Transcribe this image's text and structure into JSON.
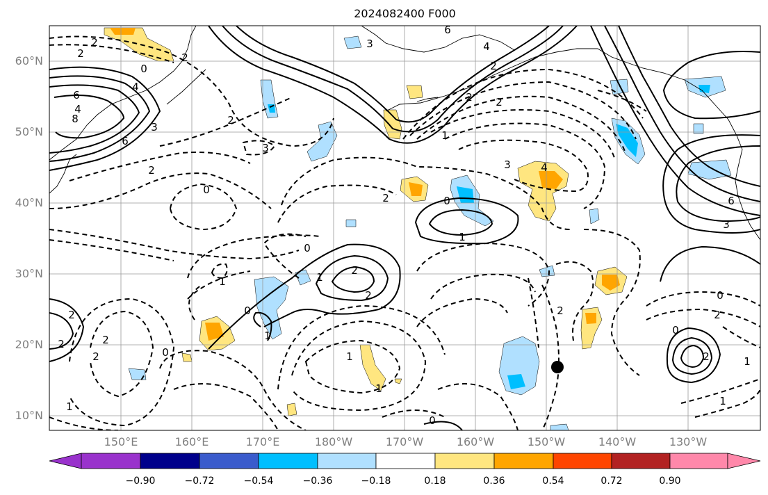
{
  "title": "2024082400 F000",
  "lat_labels": [
    "60°N",
    "50°N",
    "40°N",
    "30°N",
    "20°N",
    "10°N"
  ],
  "lon_labels": [
    "150°E",
    "160°E",
    "170°E",
    "180°W",
    "170°W",
    "160°W",
    "150°W",
    "140°W",
    "130°W"
  ],
  "colorbar": {
    "ticks": [
      "−0.90",
      "−0.72",
      "−0.54",
      "−0.36",
      "−0.18",
      "0.18",
      "0.36",
      "0.54",
      "0.72",
      "0.90"
    ],
    "colors": [
      "#9932cc",
      "#00008b",
      "#3a5bcc",
      "#00bfff",
      "#b0e0ff",
      "#ffffff",
      "#ffe680",
      "#ffa500",
      "#ff4500",
      "#b22222",
      "#ff88aa"
    ]
  },
  "contour_labels": [
    "2",
    "6",
    "4",
    "3",
    "2",
    "0",
    "4",
    "6",
    "8",
    "2",
    "2",
    "3",
    "2",
    "0",
    "2",
    "2",
    "2",
    "1",
    "3",
    "3",
    "4",
    "2",
    "0",
    "1",
    "1",
    "2",
    "2",
    "0",
    "1",
    "1",
    "0",
    "2",
    "2",
    "1",
    "2",
    "2",
    "0",
    "1",
    "1",
    "0",
    "3",
    "6",
    "1",
    "0",
    "2",
    "1",
    "0",
    "2",
    "2",
    "6",
    "4"
  ]
}
